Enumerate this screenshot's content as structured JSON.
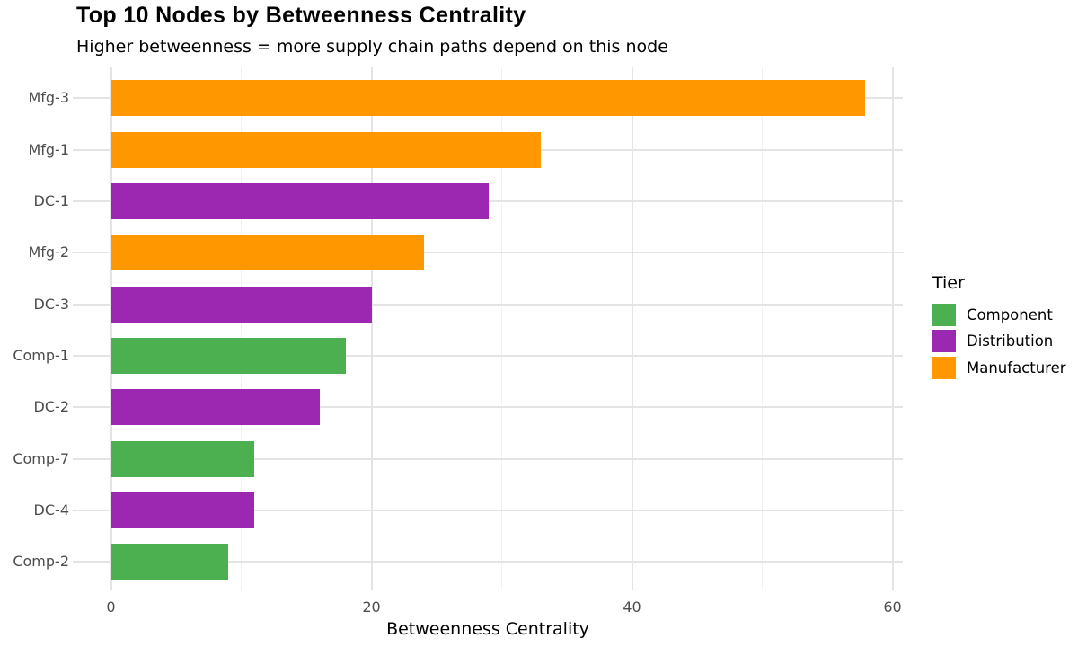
{
  "title": "Top 10 Nodes by Betweenness Centrality",
  "subtitle": "Higher betweenness = more supply chain paths depend on this node",
  "chart_data": {
    "type": "bar",
    "orientation": "horizontal",
    "title": "Top 10 Nodes by Betweenness Centrality",
    "subtitle": "Higher betweenness = more supply chain paths depend on this node",
    "xlabel": "Betweenness Centrality",
    "ylabel": "",
    "xlim": [
      -2.9,
      60.8
    ],
    "x_major_ticks": [
      0,
      20,
      40,
      60
    ],
    "x_minor_ticks": [
      10,
      30,
      50
    ],
    "grid": true,
    "legend_position": "right",
    "categories": [
      "Mfg-3",
      "Mfg-1",
      "DC-1",
      "Mfg-2",
      "DC-3",
      "Comp-1",
      "DC-2",
      "Comp-7",
      "DC-4",
      "Comp-2"
    ],
    "values": [
      57.9,
      33,
      29,
      24,
      20,
      18,
      16,
      11,
      11,
      9
    ],
    "series_key": "Tier",
    "tiers": [
      "Manufacturer",
      "Manufacturer",
      "Distribution",
      "Manufacturer",
      "Distribution",
      "Component",
      "Distribution",
      "Component",
      "Distribution",
      "Component"
    ],
    "tier_colors": {
      "Component": "#4CAF50",
      "Distribution": "#9C27B0",
      "Manufacturer": "#FF9800"
    },
    "legend": {
      "title": "Tier",
      "entries": [
        {
          "label": "Component",
          "color": "#4CAF50"
        },
        {
          "label": "Distribution",
          "color": "#9C27B0"
        },
        {
          "label": "Manufacturer",
          "color": "#FF9800"
        }
      ]
    }
  }
}
